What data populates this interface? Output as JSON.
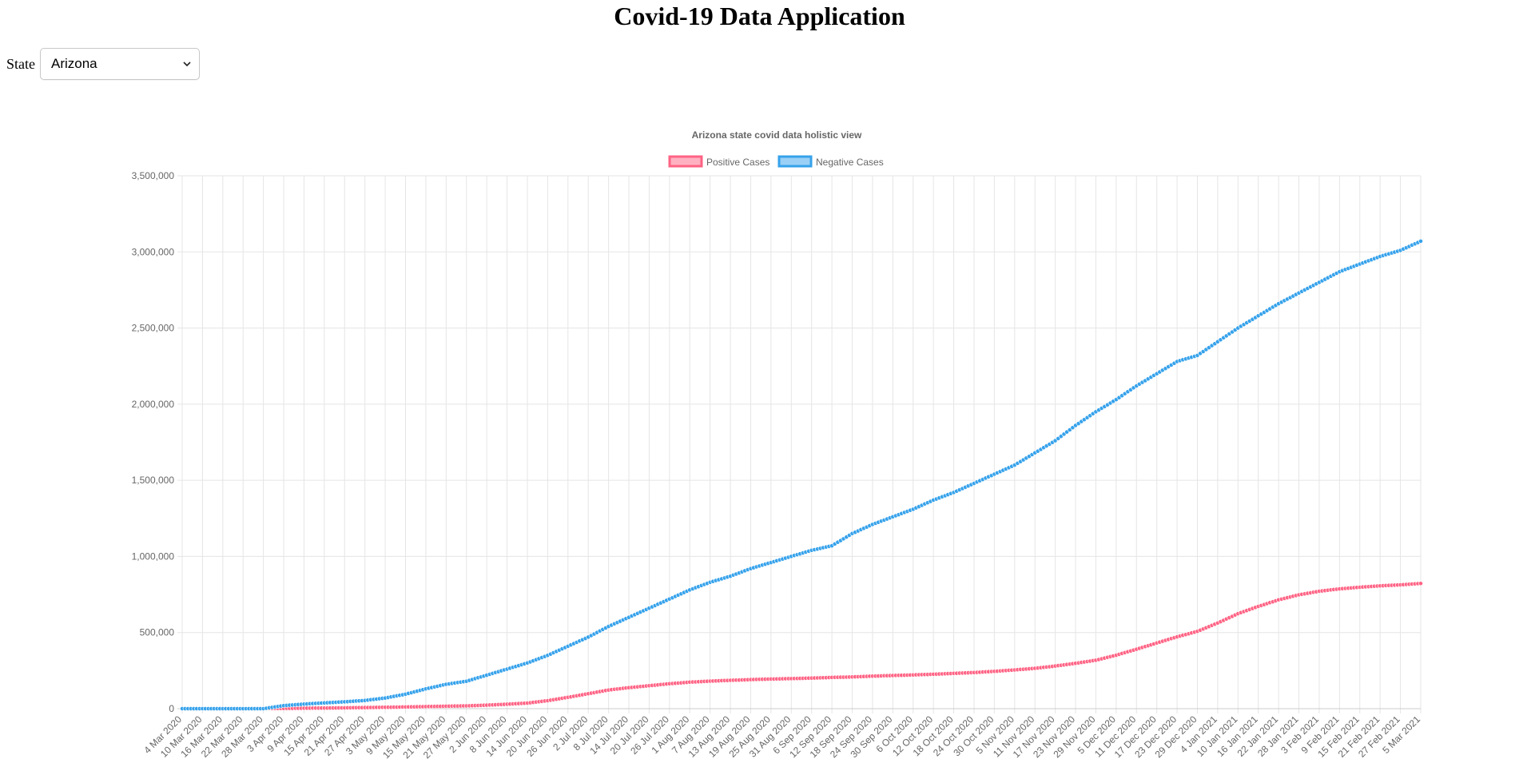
{
  "app": {
    "title": "Covid-19 Data Application"
  },
  "state_selector": {
    "label": "State",
    "selected": "Arizona"
  },
  "chart_data": {
    "type": "line",
    "title": "Arizona state covid data holistic view",
    "legend_position": "top",
    "grid": true,
    "x_axis_labels": [
      "4 Mar 2020",
      "10 Mar 2020",
      "16 Mar 2020",
      "22 Mar 2020",
      "28 Mar 2020",
      "3 Apr 2020",
      "9 Apr 2020",
      "15 Apr 2020",
      "21 Apr 2020",
      "27 Apr 2020",
      "3 May 2020",
      "9 May 2020",
      "15 May 2020",
      "21 May 2020",
      "27 May 2020",
      "2 Jun 2020",
      "8 Jun 2020",
      "14 Jun 2020",
      "20 Jun 2020",
      "26 Jun 2020",
      "2 Jul 2020",
      "8 Jul 2020",
      "14 Jul 2020",
      "20 Jul 2020",
      "26 Jul 2020",
      "1 Aug 2020",
      "7 Aug 2020",
      "13 Aug 2020",
      "19 Aug 2020",
      "25 Aug 2020",
      "31 Aug 2020",
      "6 Sep 2020",
      "12 Sep 2020",
      "18 Sep 2020",
      "24 Sep 2020",
      "30 Sep 2020",
      "6 Oct 2020",
      "12 Oct 2020",
      "18 Oct 2020",
      "24 Oct 2020",
      "30 Oct 2020",
      "5 Nov 2020",
      "11 Nov 2020",
      "17 Nov 2020",
      "23 Nov 2020",
      "29 Nov 2020",
      "5 Dec 2020",
      "11 Dec 2020",
      "17 Dec 2020",
      "23 Dec 2020",
      "29 Dec 2020",
      "4 Jan 2021",
      "10 Jan 2021",
      "16 Jan 2021",
      "22 Jan 2021",
      "28 Jan 2021",
      "3 Feb 2021",
      "9 Feb 2021",
      "15 Feb 2021",
      "21 Feb 2021",
      "27 Feb 2021",
      "5 Mar 2021"
    ],
    "y_ticks": [
      "0",
      "500,000",
      "1,000,000",
      "1,500,000",
      "2,000,000",
      "2,500,000",
      "3,000,000",
      "3,500,000"
    ],
    "ylim": [
      0,
      3500000
    ],
    "series": [
      {
        "name": "Positive Cases",
        "color": "#ff6384",
        "values": [
          0,
          0,
          10,
          100,
          700,
          1800,
          3000,
          4100,
          5500,
          7200,
          9000,
          11100,
          13600,
          16100,
          18500,
          23000,
          29200,
          36800,
          52400,
          74500,
          98100,
          122500,
          138000,
          150800,
          163800,
          174000,
          181100,
          186100,
          190800,
          194500,
          197500,
          201000,
          205000,
          208500,
          213500,
          217900,
          221700,
          226000,
          231800,
          237300,
          245000,
          254500,
          264900,
          280000,
          298000,
          318200,
          351300,
          390200,
          431100,
          471800,
          507700,
          562500,
          623800,
          671500,
          714700,
          747500,
          771300,
          786600,
          797800,
          806500,
          813300,
          822500
        ]
      },
      {
        "name": "Negative Cases",
        "color": "#36a2eb",
        "values": [
          0,
          0,
          0,
          0,
          0,
          20000,
          30000,
          38000,
          45000,
          54000,
          70000,
          95000,
          130000,
          160000,
          180000,
          220000,
          260000,
          300000,
          350000,
          410000,
          470000,
          540000,
          600000,
          660000,
          720000,
          780000,
          830000,
          870000,
          920000,
          960000,
          1000000,
          1040000,
          1070000,
          1150000,
          1210000,
          1260000,
          1310000,
          1370000,
          1420000,
          1480000,
          1540000,
          1600000,
          1680000,
          1760000,
          1860000,
          1950000,
          2030000,
          2120000,
          2200000,
          2280000,
          2320000,
          2410000,
          2500000,
          2580000,
          2660000,
          2730000,
          2800000,
          2870000,
          2920000,
          2970000,
          3010000,
          3070000
        ]
      }
    ]
  }
}
